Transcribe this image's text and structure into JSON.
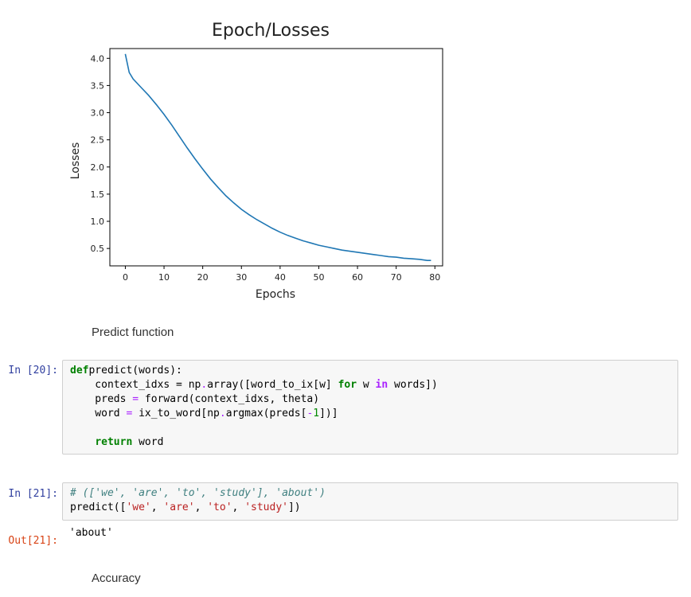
{
  "chart_data": {
    "type": "line",
    "title": "Epoch/Losses",
    "xlabel": "Epochs",
    "ylabel": "Losses",
    "xlim": [
      -4,
      82
    ],
    "ylim": [
      0.18,
      4.18
    ],
    "xticks": [
      0,
      10,
      20,
      30,
      40,
      50,
      60,
      70,
      80
    ],
    "yticks": [
      0.5,
      1.0,
      1.5,
      2.0,
      2.5,
      3.0,
      3.5,
      4.0
    ],
    "x": [
      0,
      1,
      2,
      4,
      6,
      8,
      10,
      12,
      14,
      16,
      18,
      20,
      22,
      24,
      26,
      28,
      30,
      32,
      34,
      36,
      38,
      40,
      42,
      44,
      46,
      48,
      50,
      52,
      54,
      56,
      58,
      60,
      62,
      64,
      66,
      68,
      70,
      72,
      74,
      76,
      78,
      79
    ],
    "series": [
      {
        "color": "#1f77b4",
        "values": [
          4.08,
          3.74,
          3.62,
          3.47,
          3.32,
          3.15,
          2.97,
          2.77,
          2.56,
          2.35,
          2.15,
          1.96,
          1.78,
          1.62,
          1.47,
          1.34,
          1.22,
          1.12,
          1.03,
          0.95,
          0.87,
          0.8,
          0.74,
          0.69,
          0.64,
          0.6,
          0.56,
          0.53,
          0.5,
          0.47,
          0.45,
          0.43,
          0.41,
          0.39,
          0.37,
          0.35,
          0.34,
          0.32,
          0.31,
          0.3,
          0.28,
          0.28
        ]
      }
    ],
    "xtick_labels": [
      "0",
      "10",
      "20",
      "30",
      "40",
      "50",
      "60",
      "70",
      "80"
    ],
    "ytick_labels": [
      "0.5",
      "1.0",
      "1.5",
      "2.0",
      "2.5",
      "3.0",
      "3.5",
      "4.0"
    ],
    "grid": false
  },
  "markdown": {
    "predict_heading": "Predict function",
    "accuracy_heading": "Accuracy"
  },
  "cells": {
    "cell20": {
      "prompt": "In [20]:",
      "lines": [
        [
          [
            "kw",
            "def"
          ],
          [
            "",
            "predict(words):"
          ]
        ],
        [
          [
            "",
            "    context_idxs = np"
          ],
          [
            "op",
            "."
          ],
          [
            "",
            "array([word_to_ix[w] "
          ],
          [
            "kw",
            "for"
          ],
          [
            "",
            " w "
          ],
          [
            "ow",
            "in"
          ],
          [
            "",
            " words])"
          ]
        ],
        [
          [
            "",
            "    preds "
          ],
          [
            "op",
            "="
          ],
          [
            "",
            " forward(context_idxs, theta)"
          ]
        ],
        [
          [
            "",
            "    word "
          ],
          [
            "op",
            "="
          ],
          [
            "",
            " ix_to_word[np"
          ],
          [
            "op",
            "."
          ],
          [
            "",
            "argmax(preds["
          ],
          [
            "op",
            "-"
          ],
          [
            "num",
            "1"
          ],
          [
            "",
            "])]"
          ]
        ],
        [
          [
            "",
            ""
          ]
        ],
        [
          [
            "",
            "    "
          ],
          [
            "kw",
            "return"
          ],
          [
            "",
            " word"
          ]
        ]
      ]
    },
    "cell21": {
      "prompt": "In [21]:",
      "lines": [
        [
          [
            "cmt",
            "# (['we', 'are', 'to', 'study'], 'about')"
          ]
        ],
        [
          [
            "",
            "predict(["
          ],
          [
            "str",
            "'we'"
          ],
          [
            "",
            ", "
          ],
          [
            "str",
            "'are'"
          ],
          [
            "",
            ", "
          ],
          [
            "str",
            "'to'"
          ],
          [
            "",
            ", "
          ],
          [
            "str",
            "'study'"
          ],
          [
            "",
            "])"
          ]
        ]
      ],
      "out_prompt": "Out[21]:",
      "output": "'about'"
    }
  }
}
